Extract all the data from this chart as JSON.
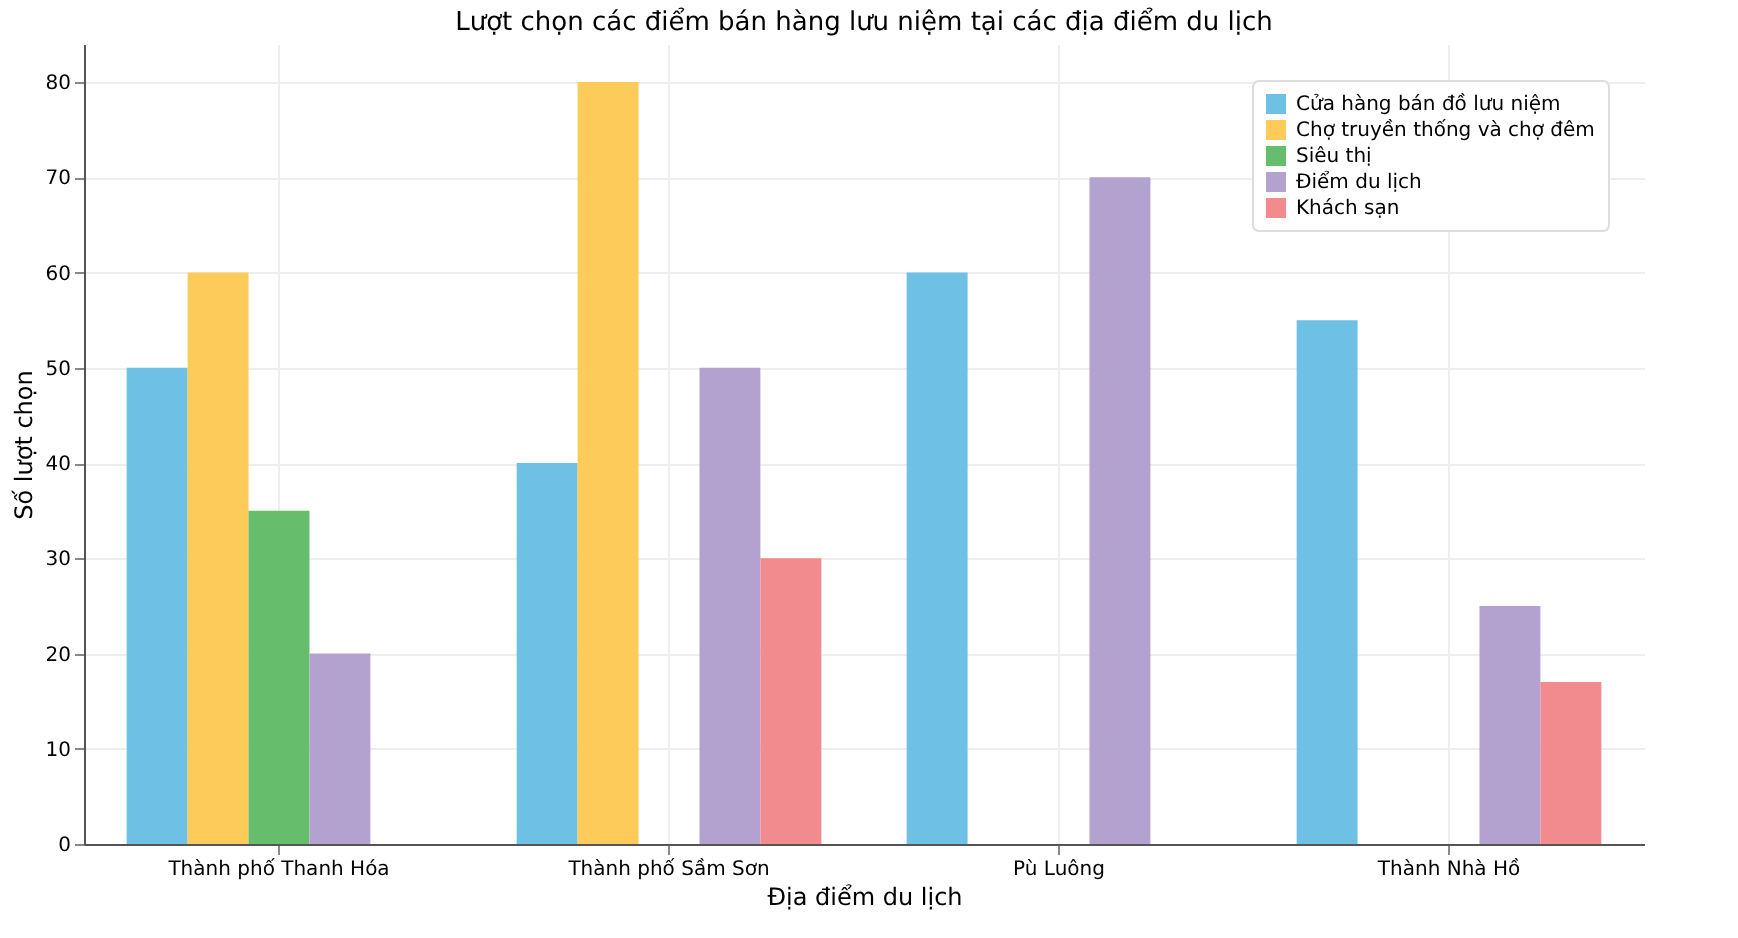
{
  "chart_data": {
    "type": "bar",
    "title": "Lượt chọn các điểm bán hàng lưu niệm tại các địa điểm du lịch",
    "xlabel": "Địa điểm du lịch",
    "ylabel": "Số lượt chọn",
    "categories": [
      "Thành phố Thanh Hóa",
      "Thành phố Sầm Sơn",
      "Pù Luông",
      "Thành Nhà Hồ"
    ],
    "series": [
      {
        "name": "Cửa hàng bán đồ lưu niệm",
        "color": "#6ec0e4",
        "values": [
          50,
          40,
          60,
          55
        ]
      },
      {
        "name": "Chợ truyền thống và chợ đêm",
        "color": "#fdcb5a",
        "values": [
          60,
          80,
          null,
          null
        ]
      },
      {
        "name": "Siêu thị",
        "color": "#66bd6b",
        "values": [
          35,
          null,
          null,
          null
        ]
      },
      {
        "name": "Điểm du lịch",
        "color": "#b3a2cf",
        "values": [
          20,
          50,
          70,
          25
        ]
      },
      {
        "name": "Khách sạn",
        "color": "#f28b8e",
        "values": [
          null,
          30,
          null,
          17
        ]
      }
    ],
    "ylim": [
      0,
      84
    ],
    "yticks": [
      0,
      10,
      20,
      30,
      40,
      50,
      60,
      70,
      80
    ],
    "grid": true,
    "legend": "top right"
  }
}
